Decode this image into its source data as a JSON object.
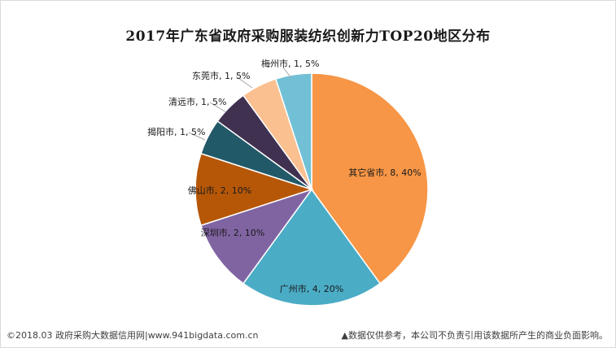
{
  "chart_data": {
    "type": "pie",
    "title": "2017年广东省政府采购服装纺织创新力TOP20地区分布",
    "slices": [
      {
        "name": "其它省市",
        "value": 8,
        "percent": "40%",
        "color": "#F79646",
        "label": "其它省市, 8, 40%"
      },
      {
        "name": "广州市",
        "value": 4,
        "percent": "20%",
        "color": "#4BACC6",
        "label": "广州市, 4, 20%"
      },
      {
        "name": "深圳市",
        "value": 2,
        "percent": "10%",
        "color": "#8064A2",
        "label": "深圳市, 2, 10%"
      },
      {
        "name": "佛山市",
        "value": 2,
        "percent": "10%",
        "color": "#B65708",
        "label": "佛山市, 2, 10%"
      },
      {
        "name": "揭阳市",
        "value": 1,
        "percent": "5%",
        "color": "#215968",
        "label": "揭阳市, 1, 5%"
      },
      {
        "name": "清远市",
        "value": 1,
        "percent": "5%",
        "color": "#403151",
        "label": "清远市, 1, 5%"
      },
      {
        "name": "东莞市",
        "value": 1,
        "percent": "5%",
        "color": "#FAC090",
        "label": "东莞市, 1, 5%"
      },
      {
        "name": "梅州市",
        "value": 1,
        "percent": "5%",
        "color": "#72C0D6",
        "label": "梅州市, 1, 5%"
      }
    ]
  },
  "footer": {
    "left": "©2018.03 政府采购大数据信用网|www.941bigdata.com.cn",
    "right": "▲数据仅供参考，本公司不负责引用该数据所产生的商业负面影响。"
  }
}
